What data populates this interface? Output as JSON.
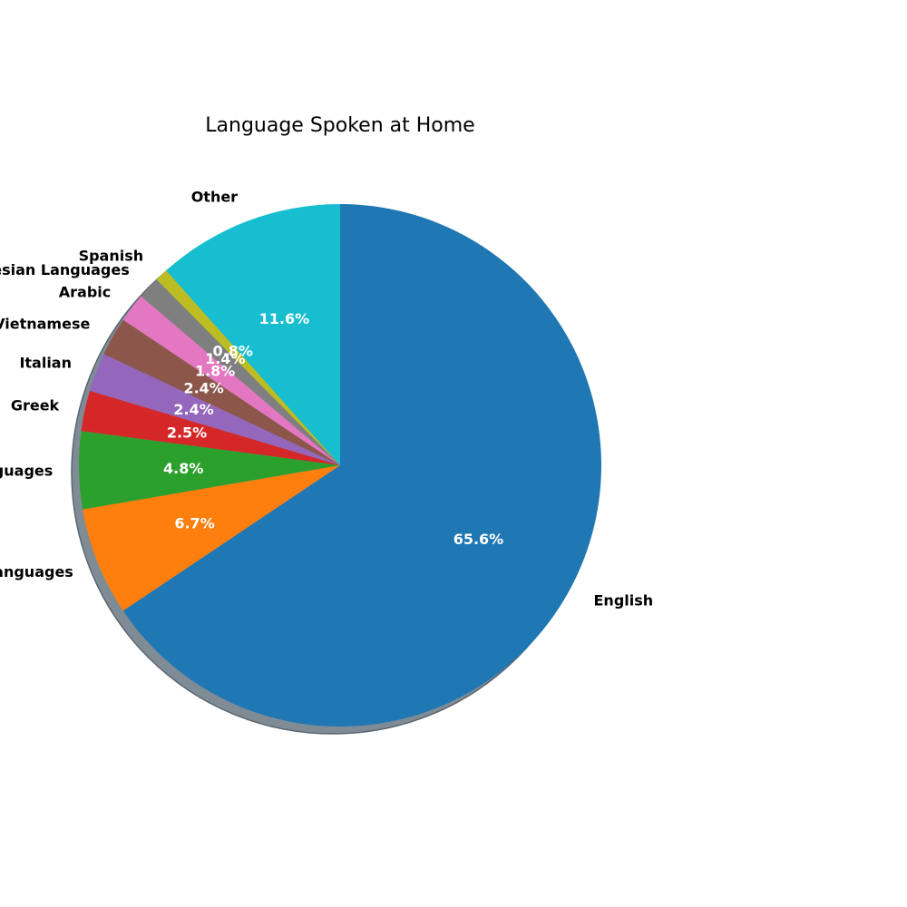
{
  "chart_data": {
    "type": "pie",
    "title": "Language Spoken at Home",
    "start_angle_deg": 90,
    "direction": "clockwise",
    "shadow": true,
    "slices": [
      {
        "label": "English",
        "value": 65.6,
        "pct_label": "65.6%",
        "color": "#1f77b4"
      },
      {
        "label": "Chinese languages",
        "value": 6.7,
        "pct_label": "6.7%",
        "color": "#ff7f0e"
      },
      {
        "label": "Indo Aryan Languages",
        "value": 4.8,
        "pct_label": "4.8%",
        "color": "#2ca02c"
      },
      {
        "label": "Greek",
        "value": 2.5,
        "pct_label": "2.5%",
        "color": "#d62728"
      },
      {
        "label": "Italian",
        "value": 2.4,
        "pct_label": "2.4%",
        "color": "#9467bd"
      },
      {
        "label": "Vietnamese",
        "value": 2.4,
        "pct_label": "2.4%",
        "color": "#8c564b"
      },
      {
        "label": "Arabic",
        "value": 1.8,
        "pct_label": "1.8%",
        "color": "#e377c2"
      },
      {
        "label": "Southeast Asian Austronesian Languages",
        "value": 1.4,
        "pct_label": "1.4%",
        "color": "#7f7f7f"
      },
      {
        "label": "Spanish",
        "value": 0.8,
        "pct_label": "0.8%",
        "color": "#bcbd22"
      },
      {
        "label": "Other",
        "value": 11.6,
        "pct_label": "11.6%",
        "color": "#17becf"
      }
    ]
  }
}
